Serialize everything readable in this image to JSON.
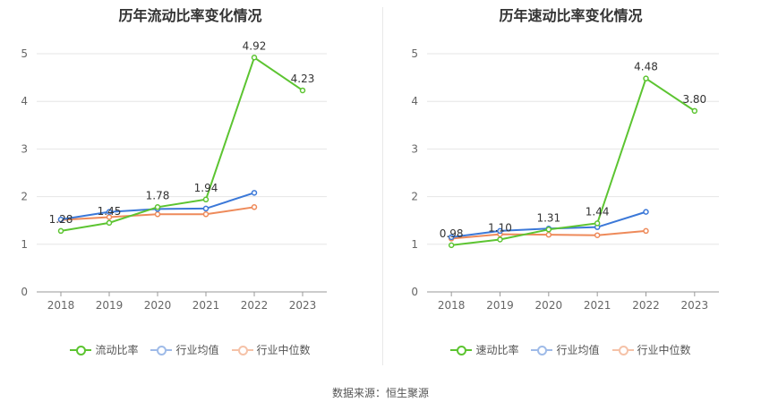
{
  "source": "数据来源：恒生聚源",
  "colors": {
    "primary": "#5cc431",
    "average": "#3b78d8",
    "median": "#ee8a5a"
  },
  "chart_data": [
    {
      "type": "line",
      "title": "历年流动比率变化情况",
      "x": [
        "2018",
        "2019",
        "2020",
        "2021",
        "2022",
        "2023"
      ],
      "ylim": [
        0,
        5
      ],
      "yticks": [
        "0",
        "1",
        "2",
        "3",
        "4",
        "5"
      ],
      "series": [
        {
          "name": "流动比率",
          "values": [
            1.28,
            1.45,
            1.78,
            1.94,
            4.92,
            4.23
          ],
          "labels": [
            "1.28",
            "1.45",
            "1.78",
            "1.94",
            "4.92",
            "4.23"
          ]
        },
        {
          "name": "行业均值",
          "values": [
            1.52,
            1.68,
            1.74,
            1.75,
            2.08,
            null
          ]
        },
        {
          "name": "行业中位数",
          "values": [
            1.51,
            1.57,
            1.63,
            1.63,
            1.78,
            null
          ]
        }
      ]
    },
    {
      "type": "line",
      "title": "历年速动比率变化情况",
      "x": [
        "2018",
        "2019",
        "2020",
        "2021",
        "2022",
        "2023"
      ],
      "ylim": [
        0,
        5
      ],
      "yticks": [
        "0",
        "1",
        "2",
        "3",
        "4",
        "5"
      ],
      "series": [
        {
          "name": "速动比率",
          "values": [
            0.98,
            1.1,
            1.31,
            1.44,
            4.48,
            3.8
          ],
          "labels": [
            "0.98",
            "1.10",
            "1.31",
            "1.44",
            "4.48",
            "3.80"
          ]
        },
        {
          "name": "行业均值",
          "values": [
            1.15,
            1.28,
            1.33,
            1.36,
            1.68,
            null
          ]
        },
        {
          "name": "行业中位数",
          "values": [
            1.12,
            1.21,
            1.2,
            1.19,
            1.28,
            null
          ]
        }
      ]
    }
  ]
}
